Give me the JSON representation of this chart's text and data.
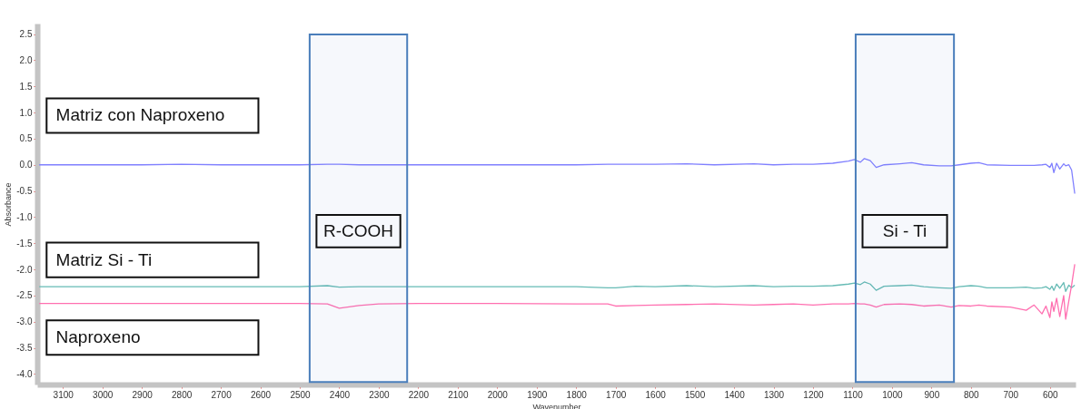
{
  "chart_data": {
    "type": "line",
    "xlabel": "Wavenumber",
    "ylabel": "Absorbance",
    "xlim": [
      3165,
      535
    ],
    "ylim": [
      -4.2,
      2.7
    ],
    "xticks": [
      3100,
      3000,
      2900,
      2800,
      2700,
      2600,
      2500,
      2400,
      2300,
      2200,
      2100,
      2000,
      1900,
      1800,
      1700,
      1600,
      1500,
      1400,
      1300,
      1200,
      1100,
      1000,
      900,
      800,
      700,
      600
    ],
    "yticks": [
      {
        "value": 2.5,
        "label": "2.5"
      },
      {
        "value": 2,
        "label": "2.0"
      },
      {
        "value": 1.5,
        "label": "1.5"
      },
      {
        "value": 1,
        "label": "1.0"
      },
      {
        "value": 0.5,
        "label": "0.5"
      },
      {
        "value": 0,
        "label": "0.0"
      },
      {
        "value": -0.5,
        "label": "-0.5"
      },
      {
        "value": -1,
        "label": "-1.0"
      },
      {
        "value": -1.5,
        "label": "-1.5"
      },
      {
        "value": -2,
        "label": "-2.0"
      },
      {
        "value": -2.5,
        "label": "-2.5"
      },
      {
        "value": -3,
        "label": "-3.0"
      },
      {
        "value": -3.5,
        "label": "-3.5"
      },
      {
        "value": -4,
        "label": "-4.0"
      }
    ],
    "grid": false,
    "legend": false,
    "x": [
      3160,
      3000,
      2900,
      2800,
      2700,
      2600,
      2500,
      2430,
      2400,
      2350,
      2300,
      2200,
      2000,
      1800,
      1720,
      1700,
      1650,
      1600,
      1520,
      1450,
      1350,
      1300,
      1250,
      1200,
      1150,
      1110,
      1095,
      1080,
      1070,
      1055,
      1040,
      1020,
      980,
      950,
      920,
      880,
      850,
      830,
      800,
      780,
      760,
      700,
      660,
      640,
      620,
      610,
      600,
      595,
      590,
      583,
      575,
      565,
      560,
      552,
      545,
      537
    ],
    "series": [
      {
        "name": "Matriz con Naproxeno",
        "color": "#8080ff",
        "values": [
          0.0,
          0.0,
          0.0,
          0.01,
          0.0,
          0.0,
          0.0,
          0.01,
          0.01,
          0.0,
          0.0,
          0.0,
          0.0,
          0.0,
          0.01,
          0.01,
          0.01,
          0.01,
          0.02,
          0.0,
          0.02,
          0.0,
          0.01,
          0.01,
          0.03,
          0.07,
          0.1,
          0.05,
          0.12,
          0.08,
          -0.05,
          0.0,
          0.02,
          0.04,
          0.0,
          -0.02,
          -0.02,
          0.0,
          0.03,
          0.04,
          0.0,
          -0.01,
          -0.01,
          -0.01,
          0.0,
          0.01,
          -0.05,
          0.03,
          -0.15,
          0.03,
          -0.08,
          0.02,
          -0.02,
          0.0,
          -0.1,
          -0.55
        ]
      },
      {
        "name": "Matriz Si - Ti",
        "color": "#66bbb5",
        "values": [
          -2.33,
          -2.33,
          -2.33,
          -2.33,
          -2.33,
          -2.33,
          -2.33,
          -2.31,
          -2.34,
          -2.33,
          -2.33,
          -2.33,
          -2.33,
          -2.33,
          -2.35,
          -2.35,
          -2.32,
          -2.33,
          -2.31,
          -2.33,
          -2.31,
          -2.33,
          -2.32,
          -2.32,
          -2.31,
          -2.28,
          -2.26,
          -2.29,
          -2.24,
          -2.28,
          -2.4,
          -2.32,
          -2.31,
          -2.3,
          -2.33,
          -2.35,
          -2.36,
          -2.33,
          -2.31,
          -2.32,
          -2.35,
          -2.35,
          -2.34,
          -2.36,
          -2.35,
          -2.33,
          -2.38,
          -2.32,
          -2.4,
          -2.28,
          -2.36,
          -2.25,
          -2.42,
          -2.3,
          -2.35,
          -2.3
        ]
      },
      {
        "name": "Naproxeno",
        "color": "#ff6fb0",
        "values": [
          -2.65,
          -2.65,
          -2.65,
          -2.65,
          -2.65,
          -2.65,
          -2.65,
          -2.66,
          -2.74,
          -2.69,
          -2.66,
          -2.65,
          -2.65,
          -2.66,
          -2.66,
          -2.7,
          -2.69,
          -2.68,
          -2.67,
          -2.66,
          -2.68,
          -2.67,
          -2.66,
          -2.68,
          -2.66,
          -2.66,
          -2.65,
          -2.66,
          -2.66,
          -2.68,
          -2.72,
          -2.67,
          -2.66,
          -2.67,
          -2.7,
          -2.68,
          -2.72,
          -2.69,
          -2.7,
          -2.68,
          -2.7,
          -2.72,
          -2.78,
          -2.68,
          -2.85,
          -2.7,
          -2.92,
          -2.62,
          -2.8,
          -2.55,
          -2.9,
          -2.5,
          -2.95,
          -2.6,
          -2.3,
          -1.9
        ]
      }
    ],
    "bands": [
      {
        "axis": "x",
        "from": 2475,
        "to": 2228,
        "label": "R-COOH",
        "color": "#4a7ebb"
      },
      {
        "axis": "x",
        "from": 1092,
        "to": 843,
        "label": "Si - Ti",
        "color": "#4a7ebb"
      }
    ]
  }
}
